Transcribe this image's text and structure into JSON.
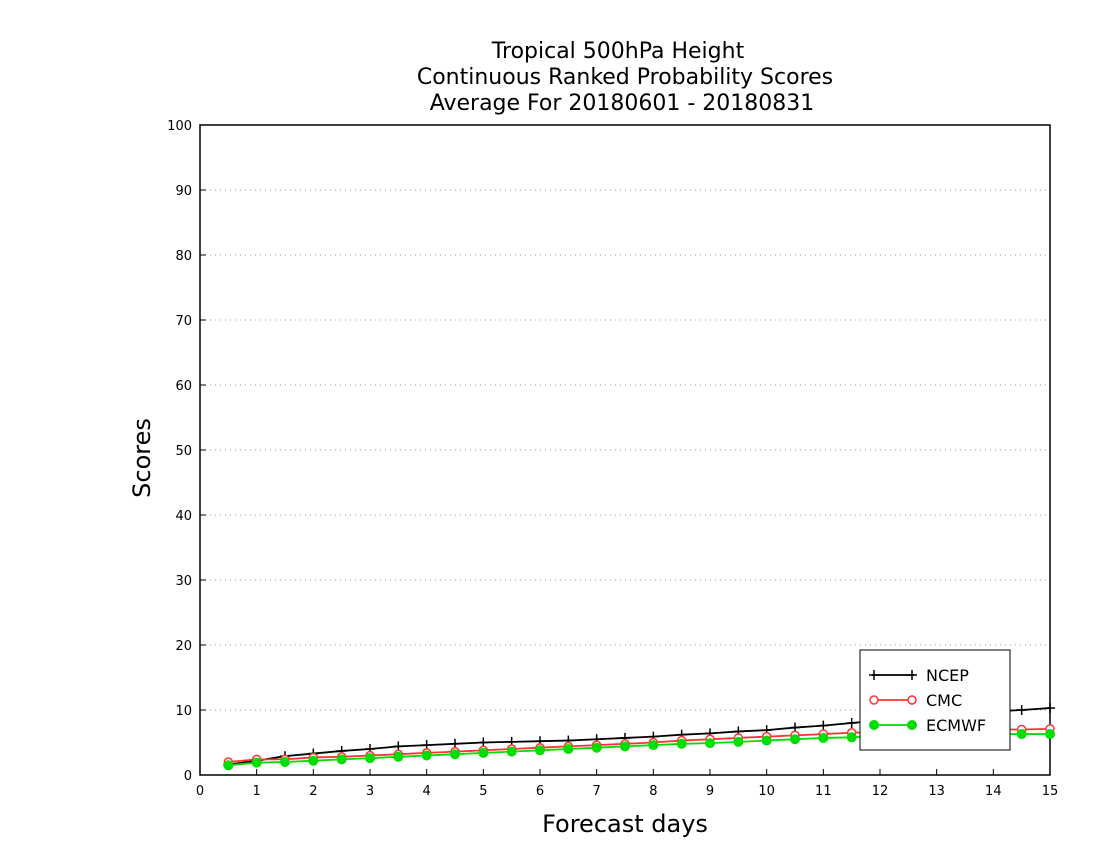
{
  "chart_data": {
    "type": "line",
    "title": [
      "Tropical 500hPa Height",
      "Continuous Ranked Probability Scores",
      "Average For 20180601 - 20180831"
    ],
    "xlabel": "Forecast days",
    "ylabel": "Scores",
    "xlim": [
      0,
      15
    ],
    "ylim": [
      0,
      100
    ],
    "xticks": [
      0,
      1,
      2,
      3,
      4,
      5,
      6,
      7,
      8,
      9,
      10,
      11,
      12,
      13,
      14,
      15
    ],
    "yticks": [
      0,
      10,
      20,
      30,
      40,
      50,
      60,
      70,
      80,
      90,
      100
    ],
    "grid": "horizontal-dotted",
    "legend_position": "bottom-right",
    "x": [
      0.5,
      1,
      1.5,
      2,
      2.5,
      3,
      3.5,
      4,
      4.5,
      5,
      5.5,
      6,
      6.5,
      7,
      7.5,
      8,
      8.5,
      9,
      9.5,
      10,
      10.5,
      11,
      11.5,
      12,
      12.5,
      13,
      13.5,
      14,
      14.5,
      15
    ],
    "series": [
      {
        "name": "NCEP",
        "color": "#000000",
        "marker": "plus",
        "values": [
          1.6,
          2.2,
          2.9,
          3.3,
          3.7,
          4.0,
          4.4,
          4.6,
          4.8,
          5.0,
          5.1,
          5.2,
          5.3,
          5.5,
          5.7,
          5.9,
          6.2,
          6.4,
          6.7,
          6.9,
          7.3,
          7.6,
          8.0,
          8.4,
          8.8,
          9.2,
          9.5,
          9.8,
          10.0,
          10.3
        ]
      },
      {
        "name": "CMC",
        "color": "#ff3333",
        "marker": "open-circle",
        "values": [
          2.0,
          2.4,
          2.4,
          2.7,
          2.8,
          3.0,
          3.2,
          3.4,
          3.6,
          3.8,
          4.0,
          4.2,
          4.4,
          4.6,
          4.8,
          5.0,
          5.3,
          5.5,
          5.7,
          5.9,
          6.1,
          6.3,
          6.5,
          6.6,
          6.8,
          6.9,
          7.0,
          7.0,
          7.0,
          7.1
        ]
      },
      {
        "name": "ECMWF",
        "color": "#00dd00",
        "marker": "filled-circle",
        "values": [
          1.5,
          1.9,
          2.0,
          2.2,
          2.4,
          2.6,
          2.8,
          3.0,
          3.2,
          3.4,
          3.6,
          3.8,
          4.0,
          4.2,
          4.4,
          4.6,
          4.8,
          4.9,
          5.1,
          5.3,
          5.5,
          5.7,
          5.8,
          6.0,
          6.1,
          6.2,
          6.3,
          6.3,
          6.3,
          6.3
        ]
      }
    ]
  }
}
